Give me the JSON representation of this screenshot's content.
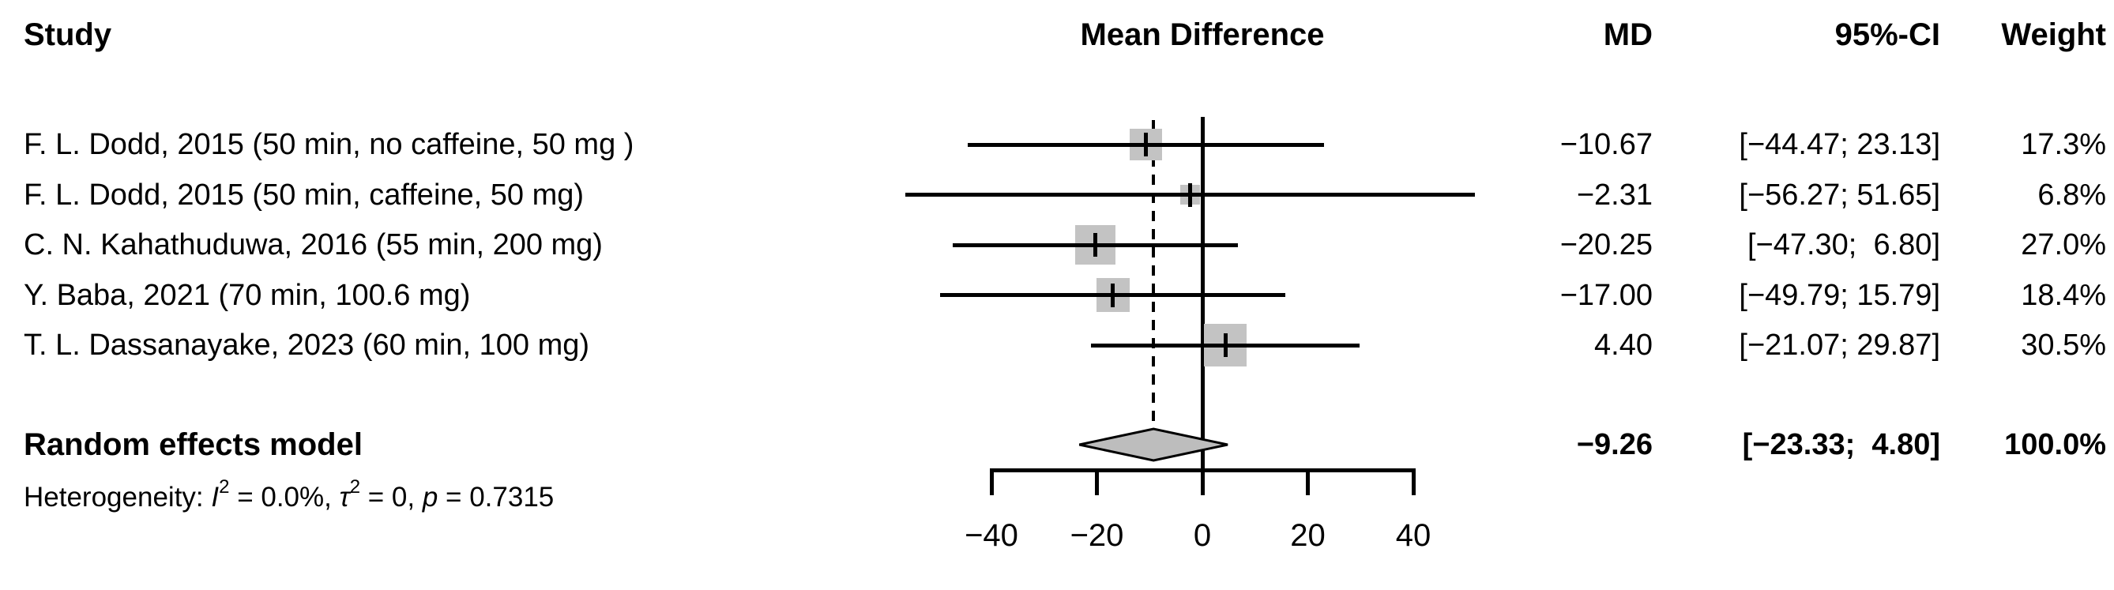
{
  "chart_data": {
    "type": "forest",
    "columns": {
      "study": "Study",
      "mean_difference": "Mean Difference",
      "md": "MD",
      "ci": "95%-CI",
      "weight": "Weight"
    },
    "x_axis": {
      "ticks": [
        -40,
        -20,
        0,
        20,
        40
      ],
      "tick_labels": [
        "−40",
        "−20",
        "0",
        "20",
        "40"
      ],
      "zero_line": 0,
      "pooled_dashed_line": -9.26,
      "xlim": [
        -40,
        40
      ]
    },
    "studies": [
      {
        "label": "F. L. Dodd, 2015 (50 min, no caffeine, 50 mg )",
        "md": -10.67,
        "ci_low": -44.47,
        "ci_high": 23.13,
        "weight": 17.3,
        "md_text": "−10.67",
        "ci_text": "[−44.47; 23.13]",
        "weight_text": "17.3%"
      },
      {
        "label": "F. L. Dodd, 2015 (50 min, caffeine, 50 mg)",
        "md": -2.31,
        "ci_low": -56.27,
        "ci_high": 51.65,
        "weight": 6.8,
        "md_text": "−2.31",
        "ci_text": "[−56.27; 51.65]",
        "weight_text": "6.8%"
      },
      {
        "label": "C. N. Kahathuduwa, 2016 (55 min, 200 mg)",
        "md": -20.25,
        "ci_low": -47.3,
        "ci_high": 6.8,
        "weight": 27.0,
        "md_text": "−20.25",
        "ci_text": "[−47.30;  6.80]",
        "weight_text": "27.0%"
      },
      {
        "label": "Y. Baba, 2021 (70 min, 100.6 mg)",
        "md": -17.0,
        "ci_low": -49.79,
        "ci_high": 15.79,
        "weight": 18.4,
        "md_text": "−17.00",
        "ci_text": "[−49.79; 15.79]",
        "weight_text": "18.4%"
      },
      {
        "label": "T. L. Dassanayake, 2023 (60 min, 100 mg)",
        "md": 4.4,
        "ci_low": -21.07,
        "ci_high": 29.87,
        "weight": 30.5,
        "md_text": "4.40",
        "ci_text": "[−21.07; 29.87]",
        "weight_text": "30.5%"
      }
    ],
    "summary": {
      "label": "Random effects model",
      "md": -9.26,
      "ci_low": -23.33,
      "ci_high": 4.8,
      "weight": 100.0,
      "md_text": "−9.26",
      "ci_text": "[−23.33;  4.80]",
      "weight_text": "100.0%"
    },
    "heterogeneity": {
      "parts": [
        {
          "text": "Heterogeneity: ",
          "style": "normal"
        },
        {
          "text": "I",
          "style": "italic"
        },
        {
          "text": "2",
          "style": "sup"
        },
        {
          "text": " = 0.0%, ",
          "style": "normal"
        },
        {
          "text": "τ",
          "style": "italic"
        },
        {
          "text": "2",
          "style": "sup"
        },
        {
          "text": " = 0, ",
          "style": "normal"
        },
        {
          "text": "p",
          "style": "italic"
        },
        {
          "text": " = 0.7315",
          "style": "normal"
        }
      ]
    },
    "colors": {
      "square": "#c3c3c3",
      "diamond_fill": "#bdbdbd",
      "line": "#000000",
      "background": "#ffffff"
    }
  }
}
